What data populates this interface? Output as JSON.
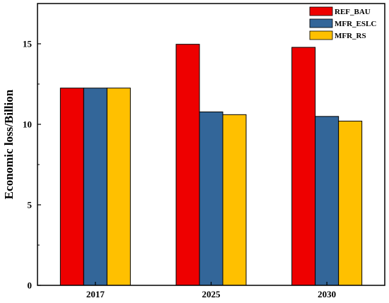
{
  "chart_data": {
    "type": "bar",
    "categories": [
      "2017",
      "2025",
      "2030"
    ],
    "series": [
      {
        "name": "REF_BAU",
        "values": [
          12.25,
          14.97,
          14.78
        ],
        "color": "#ee0000"
      },
      {
        "name": "MFR_ESLC",
        "values": [
          12.25,
          10.77,
          10.49
        ],
        "color": "#336699"
      },
      {
        "name": "MFR_RS",
        "values": [
          12.25,
          10.6,
          10.2
        ],
        "color": "#ffc000"
      }
    ],
    "xlabel": "",
    "ylabel": "Economic loss/Billion",
    "ylim": [
      0,
      17.5
    ],
    "yticks": [
      0,
      5,
      10,
      15
    ],
    "grid": false,
    "legend_position": "top-right"
  }
}
